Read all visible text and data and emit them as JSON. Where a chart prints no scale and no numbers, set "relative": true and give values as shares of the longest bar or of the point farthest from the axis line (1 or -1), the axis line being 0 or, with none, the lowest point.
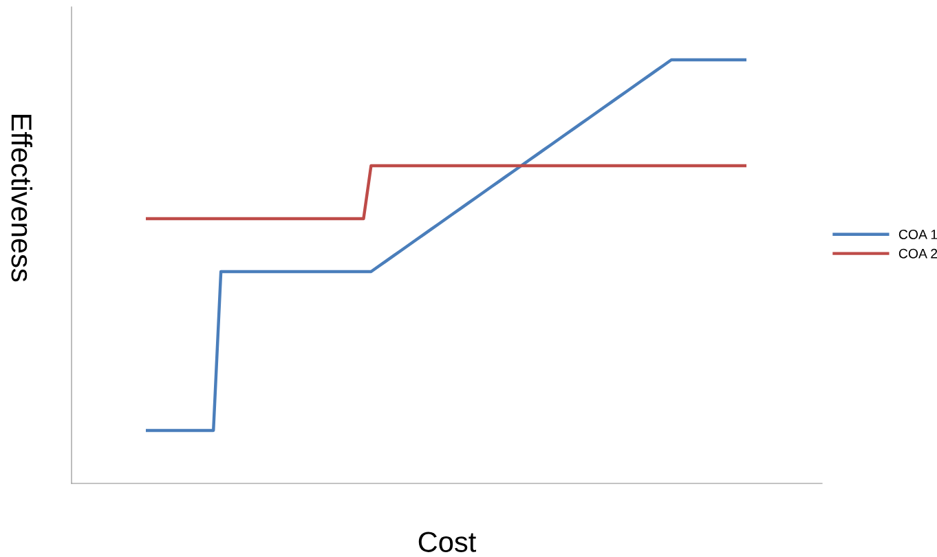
{
  "chart_data": {
    "type": "line",
    "relative": true,
    "xlabel": "Cost",
    "ylabel": "Effectiveness",
    "legend": "right",
    "marker": "none",
    "line_style": "solid",
    "categories": [
      null,
      null,
      null,
      null,
      null,
      null,
      null,
      null,
      null,
      null,
      null,
      null,
      null,
      null,
      null,
      null,
      null,
      null,
      null,
      null,
      null,
      null,
      null,
      null,
      null,
      null,
      null,
      null,
      null,
      null,
      null,
      null,
      null,
      null,
      null,
      null,
      null,
      null,
      null,
      null,
      null,
      null,
      null,
      null,
      null,
      null,
      null,
      null,
      null,
      null,
      null,
      null,
      null,
      null,
      null,
      null,
      null,
      null,
      null,
      null,
      null,
      null,
      null,
      null,
      null,
      null,
      null,
      null,
      null,
      null,
      null,
      null,
      null,
      null,
      null,
      null,
      null,
      null,
      null,
      null,
      null
    ],
    "series": [
      {
        "name": "COA 1",
        "color": "#4a7ebb",
        "values": [
          0.125,
          0.125,
          0.125,
          0.125,
          0.125,
          0.125,
          0.125,
          0.125,
          0.125,
          0.125,
          0.5,
          0.5,
          0.5,
          0.5,
          0.5,
          0.5,
          0.5,
          0.5,
          0.5,
          0.5,
          0.5,
          0.5,
          0.5,
          0.5,
          0.5,
          0.5,
          0.5,
          0.5,
          0.5,
          0.5,
          0.5,
          0.5125,
          0.525,
          0.5375,
          0.55,
          0.5625,
          0.575,
          0.5875,
          0.6,
          0.6125,
          0.625,
          0.6375,
          0.65,
          0.6625,
          0.675,
          0.6875,
          0.7,
          0.7125,
          0.725,
          0.7375,
          0.75,
          0.7625,
          0.775,
          0.7875,
          0.8,
          0.8125,
          0.825,
          0.8375,
          0.85,
          0.8625,
          0.875,
          0.8875,
          0.9,
          0.9125,
          0.925,
          0.9375,
          0.95,
          0.9625,
          0.975,
          0.9875,
          1,
          1,
          1,
          1,
          1,
          1,
          1,
          1,
          1,
          1,
          1
        ]
      },
      {
        "name": "COA 2",
        "color": "#be4b48",
        "values": [
          0.625,
          0.625,
          0.625,
          0.625,
          0.625,
          0.625,
          0.625,
          0.625,
          0.625,
          0.625,
          0.625,
          0.625,
          0.625,
          0.625,
          0.625,
          0.625,
          0.625,
          0.625,
          0.625,
          0.625,
          0.625,
          0.625,
          0.625,
          0.625,
          0.625,
          0.625,
          0.625,
          0.625,
          0.625,
          0.625,
          0.75,
          0.75,
          0.75,
          0.75,
          0.75,
          0.75,
          0.75,
          0.75,
          0.75,
          0.75,
          0.75,
          0.75,
          0.75,
          0.75,
          0.75,
          0.75,
          0.75,
          0.75,
          0.75,
          0.75,
          0.75,
          0.75,
          0.75,
          0.75,
          0.75,
          0.75,
          0.75,
          0.75,
          0.75,
          0.75,
          0.75,
          0.75,
          0.75,
          0.75,
          0.75,
          0.75,
          0.75,
          0.75,
          0.75,
          0.75,
          0.75,
          0.75,
          0.75,
          0.75,
          0.75,
          0.75,
          0.75,
          0.75,
          0.75,
          0.75,
          0.75
        ]
      }
    ]
  }
}
